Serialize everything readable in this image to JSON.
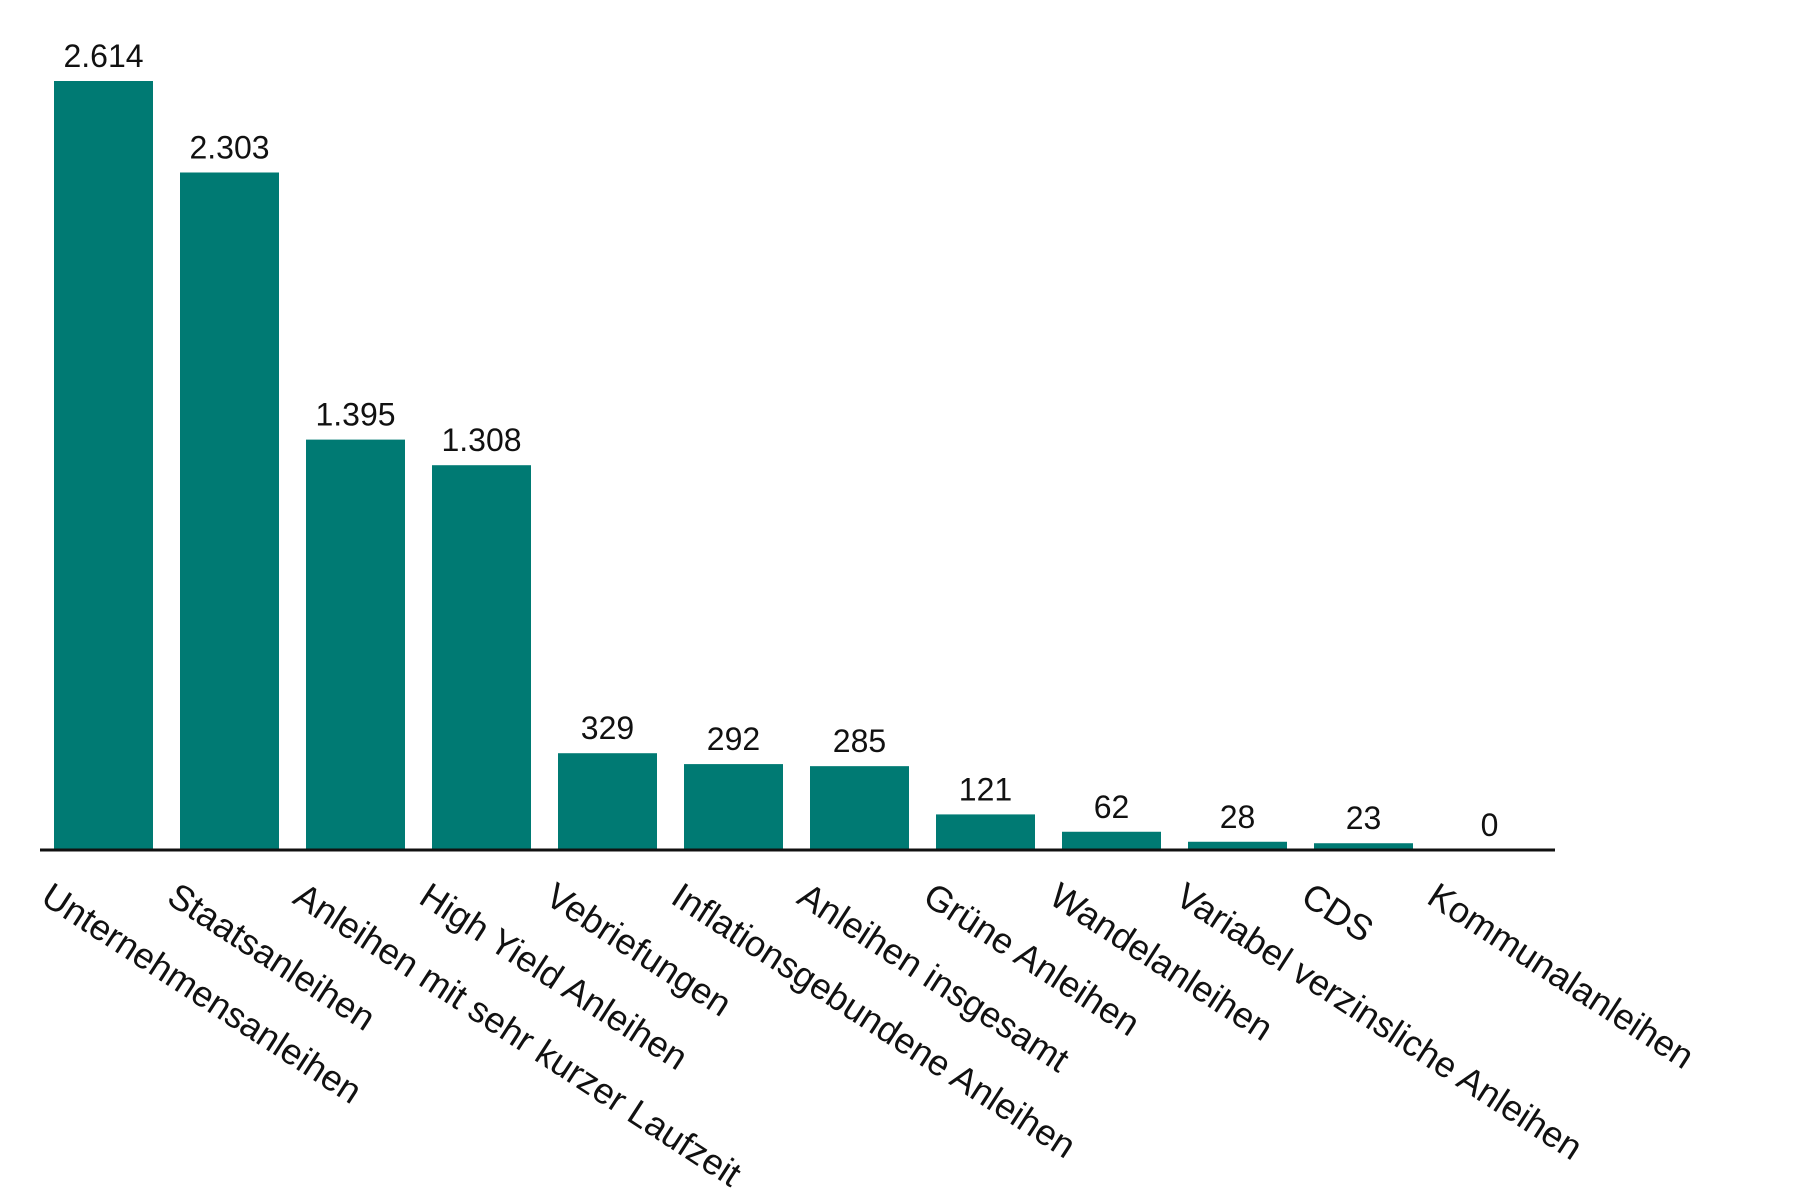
{
  "chart_data": {
    "type": "bar",
    "title": "",
    "xlabel": "",
    "ylabel": "",
    "ylim": [
      0,
      2614
    ],
    "grid": false,
    "legend": "none",
    "bar_color": "#007A73",
    "axis_color": "#111111",
    "value_labels": [
      "2.614",
      "2.303",
      "1.395",
      "1.308",
      "329",
      "292",
      "285",
      "121",
      "62",
      "28",
      "23",
      "0"
    ],
    "categories": [
      "Unternehmensanleihen",
      "Staatsanleihen",
      "Anleihen mit sehr kurzer Laufzeit",
      "High Yield Anleihen",
      "Vebriefungen",
      "Inflationsgebundene Anleihen",
      "Anleihen insgesamt",
      "Grüne Anleihen",
      "Wandelanleihen",
      "Variabel verzinsliche Anleihen",
      "CDS",
      "Kommunalanleihen"
    ],
    "values": [
      2614,
      2303,
      1395,
      1308,
      329,
      292,
      285,
      121,
      62,
      28,
      23,
      0
    ]
  }
}
